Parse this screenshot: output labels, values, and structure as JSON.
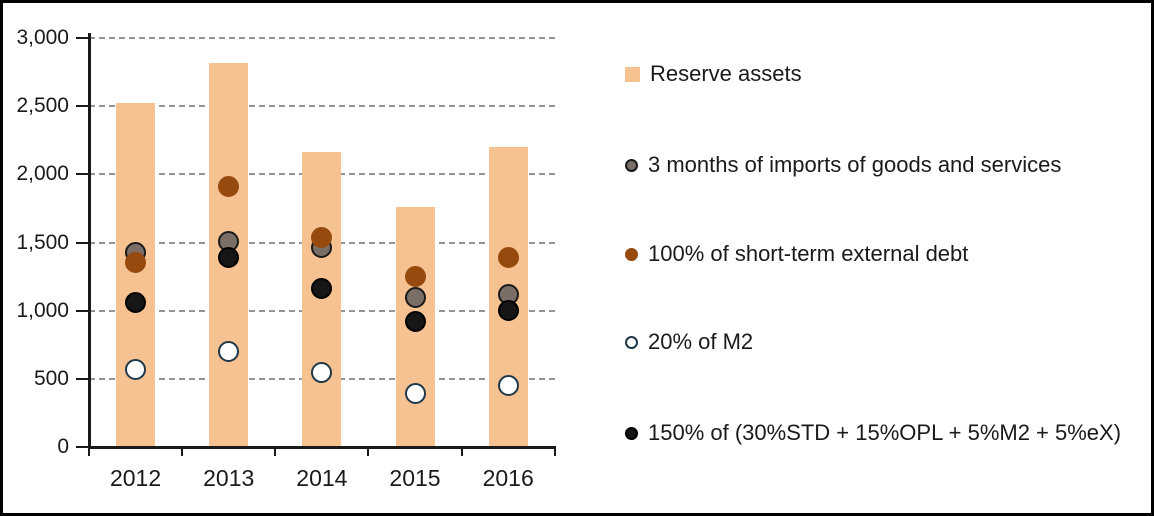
{
  "figure": {
    "background": "#ffffff",
    "border_color": "#000000",
    "text_color": "#1a1a1a",
    "gridline_color": "#949494"
  },
  "chart_data": {
    "type": "bar",
    "subtype": "bars with overlaid scatter points (reserve adequacy metrics)",
    "categories": [
      "2012",
      "2013",
      "2014",
      "2015",
      "2016"
    ],
    "series": [
      {
        "name": "Reserve assets",
        "type": "bar",
        "color": "#F6C292",
        "values": [
          2520,
          2820,
          2165,
          1760,
          2200
        ]
      },
      {
        "name": "3 months of imports of goods and services",
        "type": "scatter",
        "color": "#7B6E67",
        "outline": "#1a1a1a",
        "values": [
          1430,
          1510,
          1460,
          1100,
          1120
        ]
      },
      {
        "name": "100% of short-term external debt",
        "type": "scatter",
        "color": "#964A0D",
        "outline": "#964A0D",
        "values": [
          1350,
          1910,
          1540,
          1250,
          1390
        ]
      },
      {
        "name": "20% of M2",
        "type": "scatter",
        "color": "#FFFFFF",
        "outline": "#1F3849",
        "values": [
          570,
          700,
          545,
          390,
          450
        ]
      },
      {
        "name": "150% of (30%STD + 15%OPL + 5%M2 + 5%eX)",
        "type": "scatter",
        "color": "#161616",
        "outline": "#000000",
        "values": [
          1060,
          1390,
          1160,
          920,
          1000
        ]
      }
    ],
    "xlabel": "",
    "ylabel": "",
    "title": "",
    "ylim": [
      0,
      3000
    ],
    "yticks": [
      0,
      500,
      1000,
      1500,
      2000,
      2500,
      3000
    ],
    "ytick_labels": [
      "0",
      "500",
      "1,000",
      "1,500",
      "2,000",
      "2,500",
      "3,000"
    ],
    "grid": "horizontal dashed",
    "legend_position": "right"
  }
}
